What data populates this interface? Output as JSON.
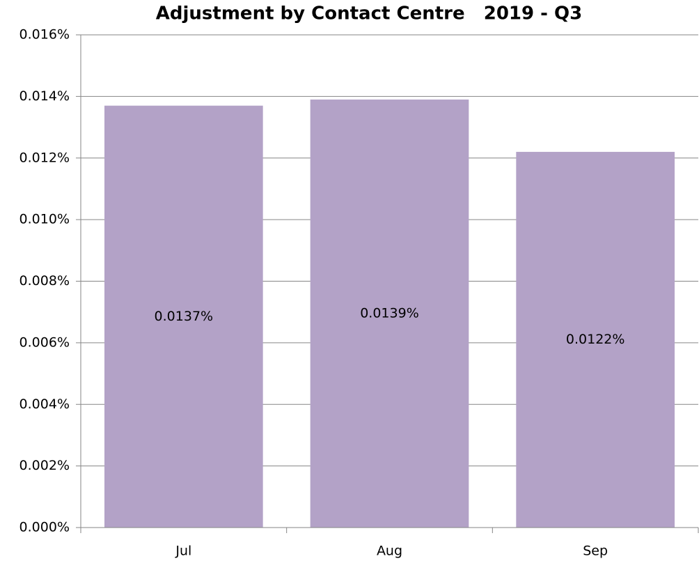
{
  "chart_data": {
    "type": "bar",
    "title": "Adjustment by Contact Centre   2019 - Q3",
    "categories": [
      "Jul",
      "Aug",
      "Sep"
    ],
    "values": [
      0.0137,
      0.0139,
      0.0122
    ],
    "value_labels": [
      "0.0137%",
      "0.0139%",
      "0.0122%"
    ],
    "color": "#b3a2c7",
    "ylim": [
      0,
      0.016
    ],
    "yticks": [
      {
        "value": 0,
        "label": "0.000%"
      },
      {
        "value": 0.002,
        "label": "0.002%"
      },
      {
        "value": 0.004,
        "label": "0.004%"
      },
      {
        "value": 0.006,
        "label": "0.006%"
      },
      {
        "value": 0.008,
        "label": "0.008%"
      },
      {
        "value": 0.01,
        "label": "0.010%"
      },
      {
        "value": 0.012,
        "label": "0.012%"
      },
      {
        "value": 0.014,
        "label": "0.014%"
      },
      {
        "value": 0.016,
        "label": "0.016%"
      }
    ],
    "grid": true
  }
}
